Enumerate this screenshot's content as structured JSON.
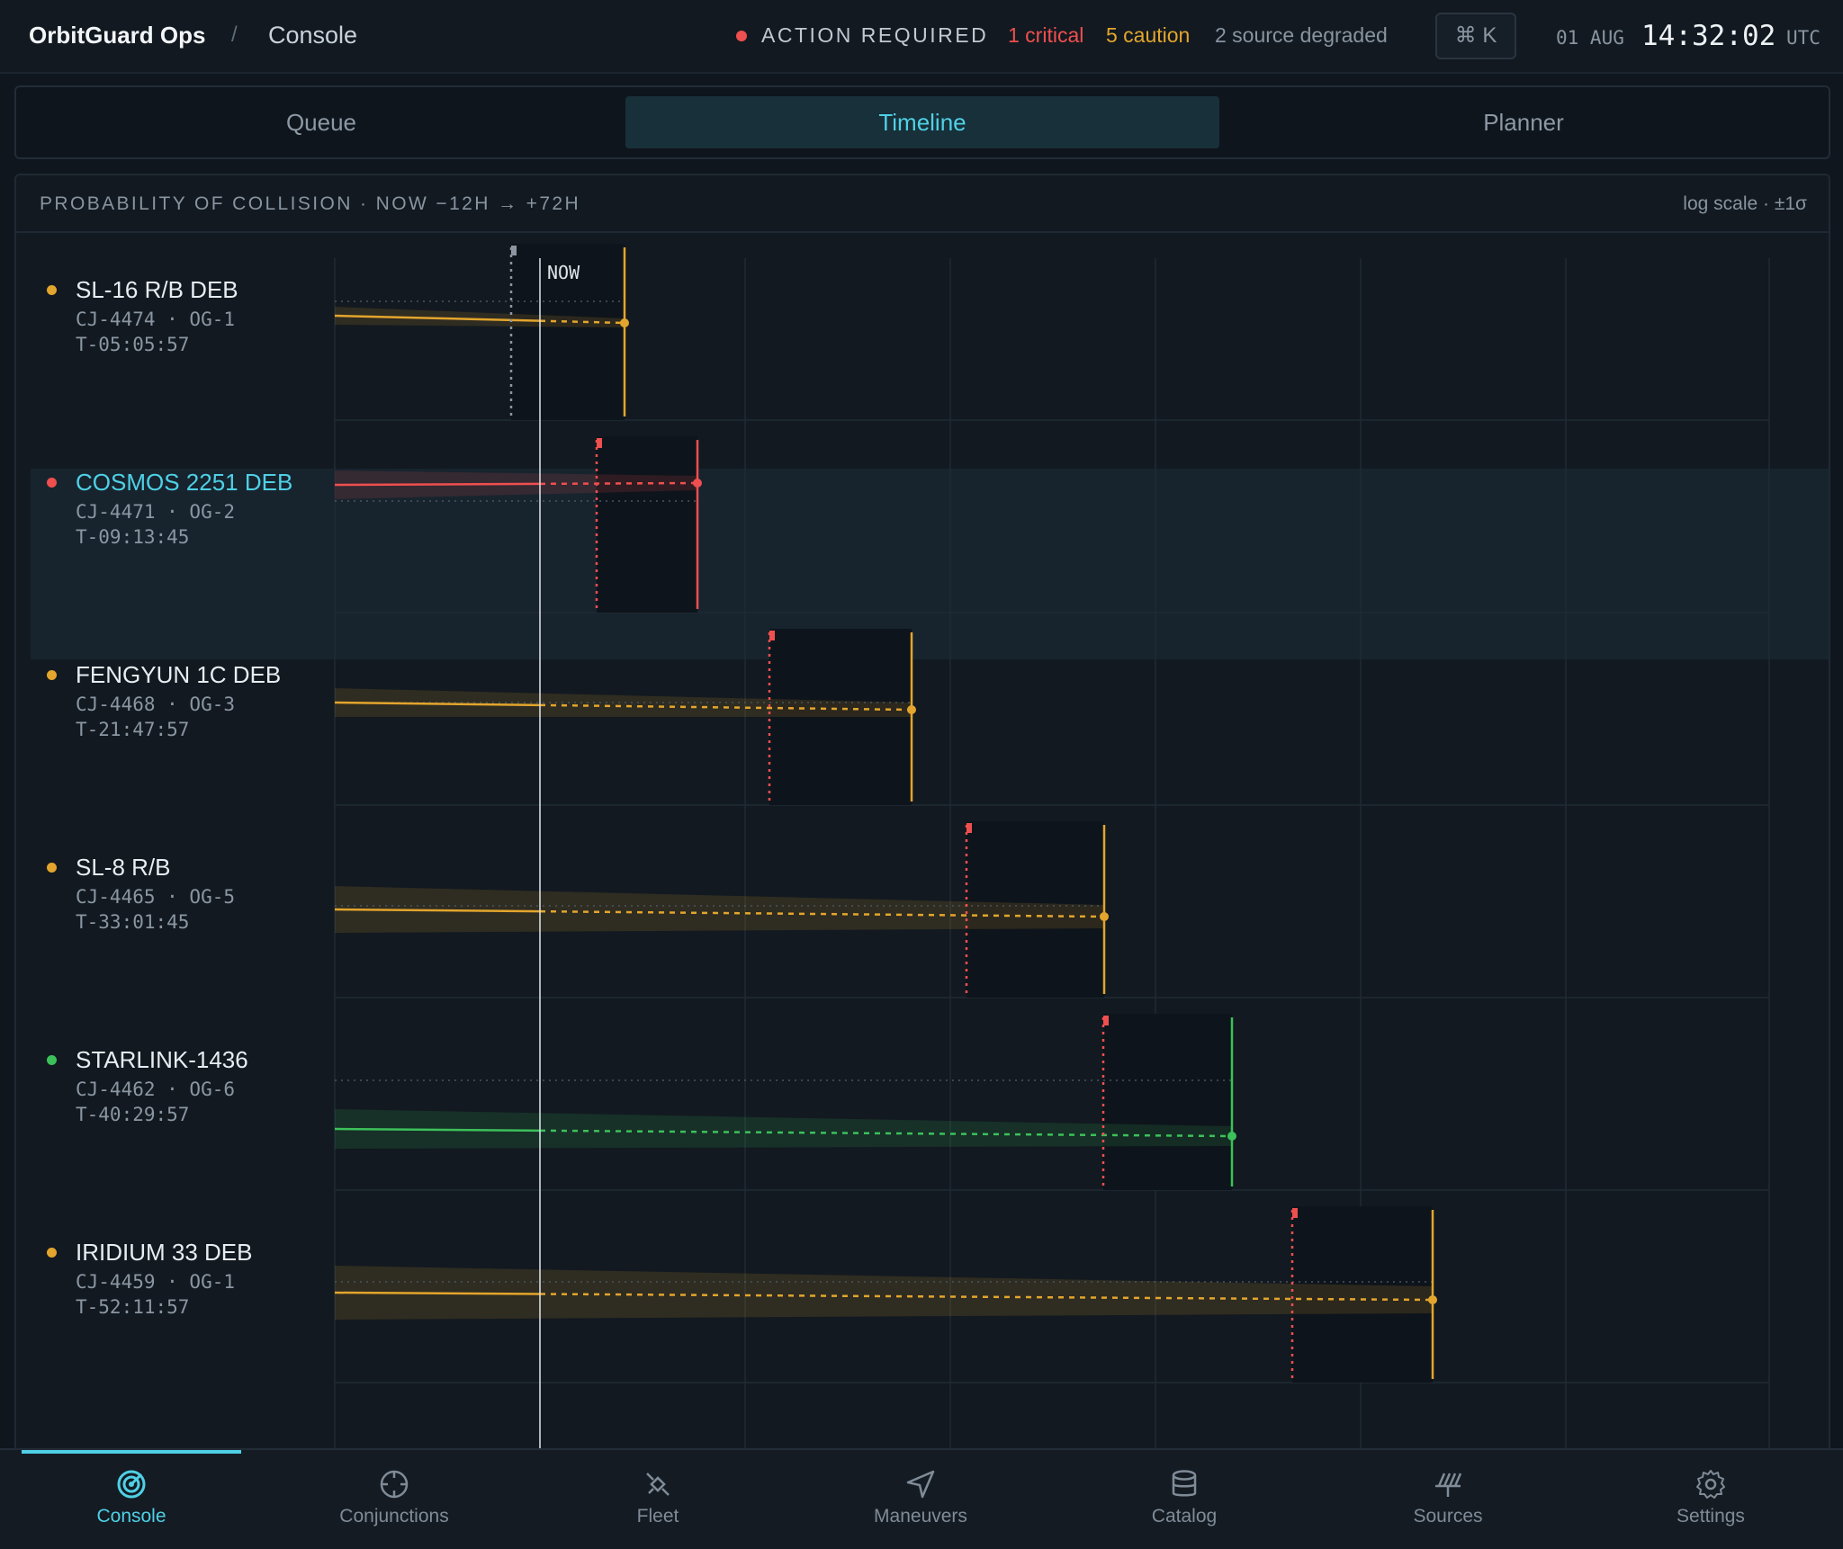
{
  "header": {
    "brand": "OrbitGuard Ops",
    "separator": "/",
    "crumb": "Console",
    "alert_label": "ACTION REQUIRED",
    "critical": "1 critical",
    "caution": "5 caution",
    "degraded": "2 source degraded",
    "command_key": "⌘ K",
    "date": "01 AUG",
    "time": "14:32:02",
    "tz": "UTC"
  },
  "views": [
    {
      "label": "Queue",
      "active": false
    },
    {
      "label": "Timeline",
      "active": true
    },
    {
      "label": "Planner",
      "active": false
    }
  ],
  "panel": {
    "title": "PROBABILITY OF COLLISION · NOW −12H → +72H",
    "scale_note": "log scale · ±1σ",
    "now_label": "NOW"
  },
  "colors": {
    "critical": "#ef4f4f",
    "caution": "#e3a52d",
    "nominal": "#3cc15a",
    "accent": "#4fd0e6"
  },
  "conjunctions": [
    {
      "name": "SL-16 R/B DEB",
      "id": "CJ-4474 · OG-1",
      "tca": "T-05:05:57",
      "status": "caution",
      "selected": false
    },
    {
      "name": "COSMOS 2251 DEB",
      "id": "CJ-4471 · OG-2",
      "tca": "T-09:13:45",
      "status": "critical",
      "selected": true
    },
    {
      "name": "FENGYUN 1C DEB",
      "id": "CJ-4468 · OG-3",
      "tca": "T-21:47:57",
      "status": "caution",
      "selected": false
    },
    {
      "name": "SL-8 R/B",
      "id": "CJ-4465 · OG-5",
      "tca": "T-33:01:45",
      "status": "caution",
      "selected": false
    },
    {
      "name": "STARLINK-1436",
      "id": "CJ-4462 · OG-6",
      "tca": "T-40:29:57",
      "status": "nominal",
      "selected": false
    },
    {
      "name": "IRIDIUM 33 DEB",
      "id": "CJ-4459 · OG-1",
      "tca": "T-52:11:57",
      "status": "caution",
      "selected": false
    }
  ],
  "nav": [
    {
      "label": "Console",
      "icon": "radar-icon",
      "active": true
    },
    {
      "label": "Conjunctions",
      "icon": "crosshair-icon",
      "active": false
    },
    {
      "label": "Fleet",
      "icon": "satellite-icon",
      "active": false
    },
    {
      "label": "Maneuvers",
      "icon": "navigation-arrow-icon",
      "active": false
    },
    {
      "label": "Catalog",
      "icon": "database-icon",
      "active": false
    },
    {
      "label": "Sources",
      "icon": "signal-icon",
      "active": false
    },
    {
      "label": "Settings",
      "icon": "gear-icon",
      "active": false
    }
  ]
}
